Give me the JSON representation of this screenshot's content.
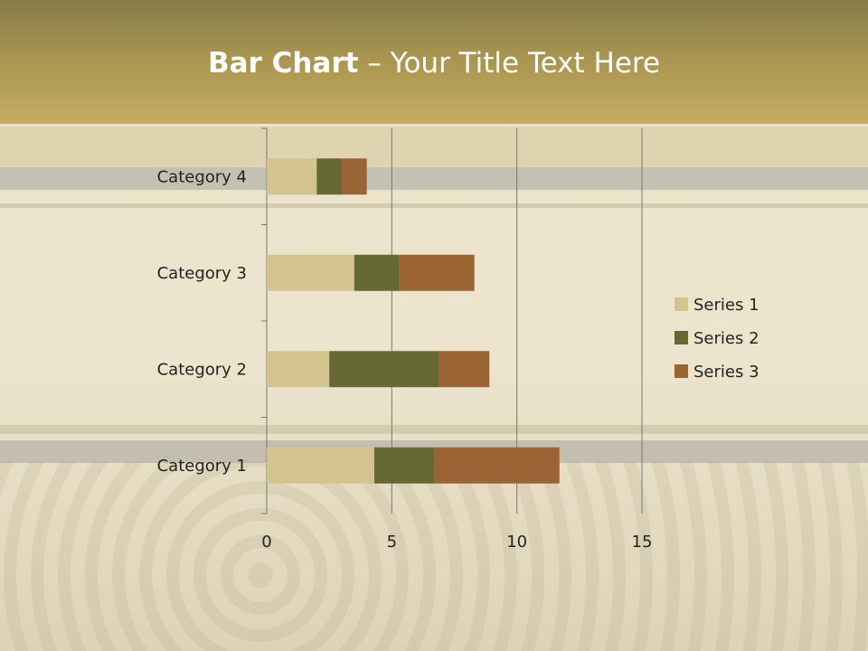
{
  "slide": {
    "title_bold": "Bar Chart",
    "title_rest": " – Your Title Text Here"
  },
  "colors": {
    "series1": "#d3c48f",
    "series2": "#666934",
    "series3": "#9a6434"
  },
  "chart_data": {
    "type": "bar",
    "orientation": "horizontal",
    "stacked": true,
    "categories": [
      "Category 1",
      "Category 2",
      "Category 3",
      "Category 4"
    ],
    "series": [
      {
        "name": "Series 1",
        "values": [
          4.3,
          2.5,
          3.5,
          2.0
        ]
      },
      {
        "name": "Series 2",
        "values": [
          2.4,
          4.4,
          1.8,
          1.0
        ]
      },
      {
        "name": "Series 3",
        "values": [
          5.0,
          2.0,
          3.0,
          1.0
        ]
      }
    ],
    "xlim": [
      0,
      15
    ],
    "xticks": [
      "0",
      "5",
      "10",
      "15"
    ],
    "grid": true,
    "legend": "right"
  }
}
